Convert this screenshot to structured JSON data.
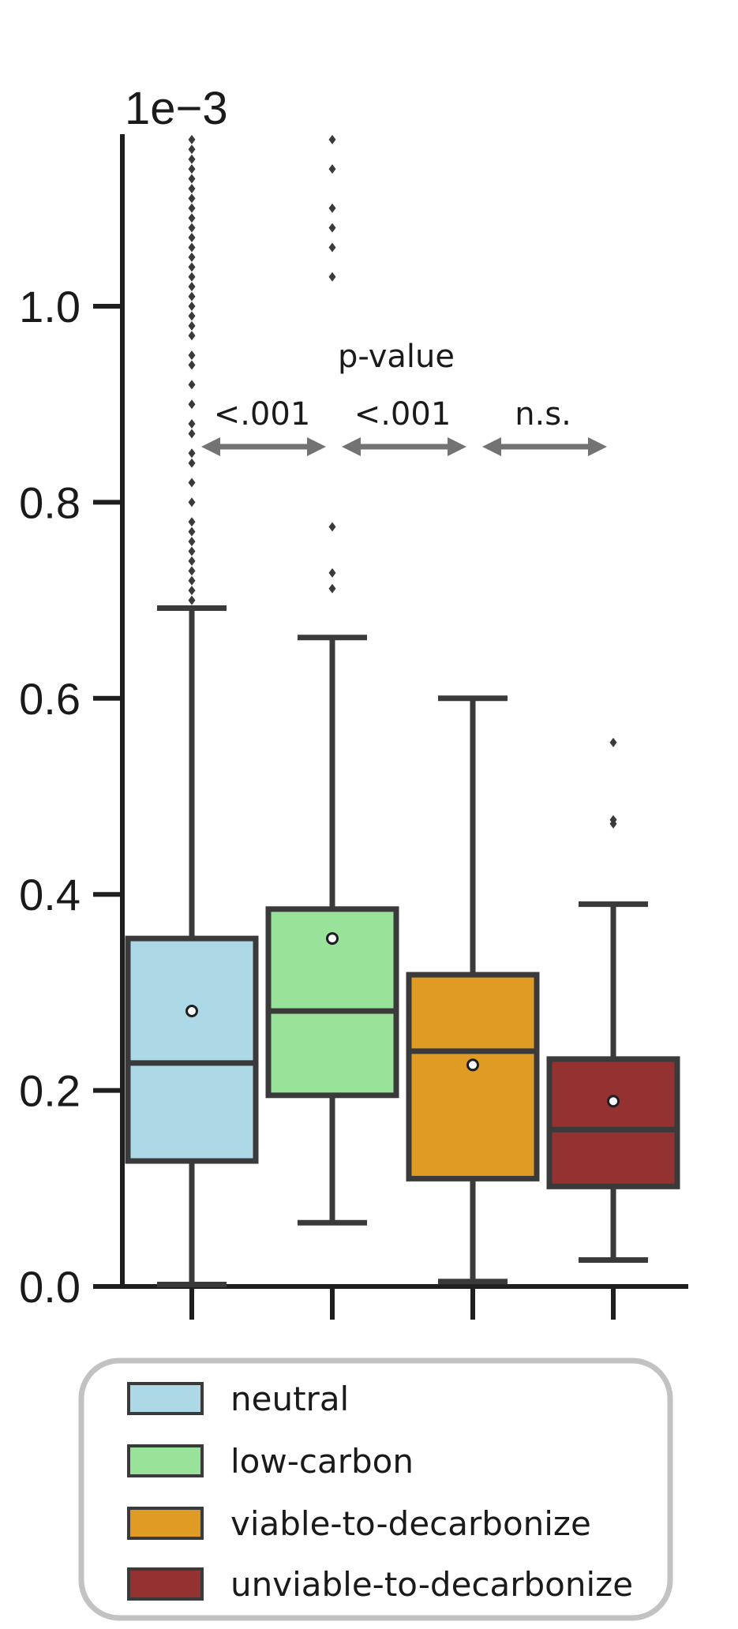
{
  "chart_data": {
    "type": "box",
    "scale_label": "1e−3",
    "ylim": [
      0,
      1.2
    ],
    "yticks": [
      "0.0",
      "0.2",
      "0.4",
      "0.6",
      "0.8",
      "1.0"
    ],
    "xticks": [
      "",
      "",
      "",
      ""
    ],
    "grid": false,
    "legend_position": "bottom",
    "series": [
      {
        "name": "neutral",
        "color": "#add8e6",
        "whisker_low": 0.002,
        "q1": 0.128,
        "median": 0.228,
        "q3": 0.355,
        "whisker_high": 0.692,
        "mean": 0.281,
        "outliers": [
          0.7,
          0.71,
          0.72,
          0.73,
          0.74,
          0.75,
          0.76,
          0.77,
          0.78,
          0.8,
          0.82,
          0.84,
          0.85,
          0.87,
          0.88,
          0.9,
          0.92,
          0.94,
          0.95,
          0.97,
          0.98,
          0.99,
          1.0,
          1.01,
          1.02,
          1.03,
          1.04,
          1.05,
          1.06,
          1.07,
          1.08,
          1.09,
          1.1,
          1.11,
          1.12,
          1.13,
          1.14,
          1.15,
          1.16,
          1.17
        ]
      },
      {
        "name": "low-carbon",
        "color": "#98e29a",
        "whisker_low": 0.065,
        "q1": 0.195,
        "median": 0.281,
        "q3": 0.385,
        "whisker_high": 0.662,
        "mean": 0.355,
        "outliers": [
          0.712,
          0.728,
          0.775,
          1.03,
          1.06,
          1.08,
          1.1,
          1.14,
          1.17
        ]
      },
      {
        "name": "viable-to-decarbonize",
        "color": "#e09b24",
        "whisker_low": 0.005,
        "q1": 0.11,
        "median": 0.24,
        "q3": 0.318,
        "whisker_high": 0.6,
        "mean": 0.226,
        "outliers": []
      },
      {
        "name": "unviable-to-decarbonize",
        "color": "#943232",
        "whisker_low": 0.027,
        "q1": 0.102,
        "median": 0.16,
        "q3": 0.232,
        "whisker_high": 0.39,
        "mean": 0.189,
        "outliers": [
          0.472,
          0.476,
          0.555
        ]
      }
    ],
    "annotations": {
      "title": "p-value",
      "comparisons": [
        {
          "from": 0,
          "to": 1,
          "label": "<.001"
        },
        {
          "from": 1,
          "to": 2,
          "label": "<.001"
        },
        {
          "from": 2,
          "to": 3,
          "label": "n.s."
        }
      ]
    }
  }
}
